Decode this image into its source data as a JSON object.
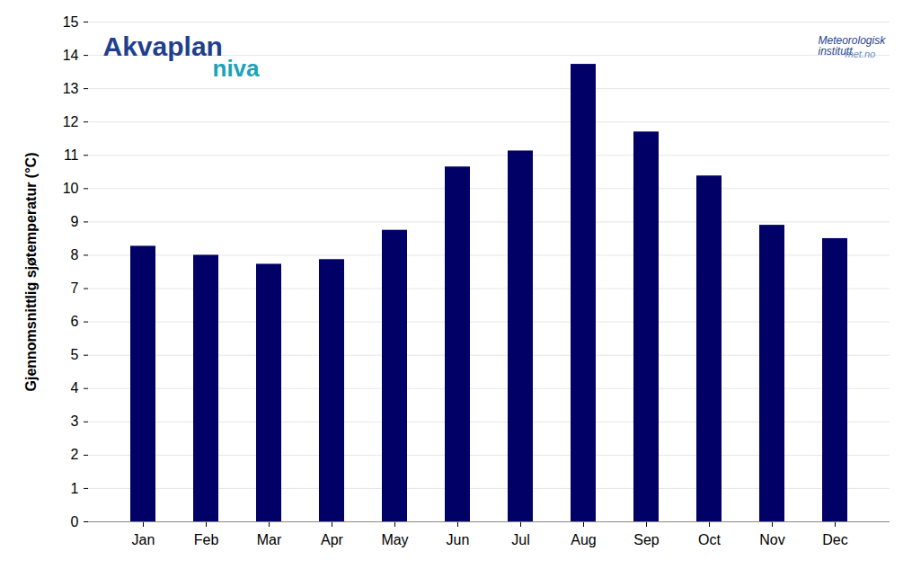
{
  "chart_data": {
    "type": "bar",
    "y_label": "Gjennomsnittlig sjøtemperatur (°C)",
    "categories": [
      "Jan",
      "Feb",
      "Mar",
      "Apr",
      "May",
      "Jun",
      "Jul",
      "Aug",
      "Sep",
      "Oct",
      "Nov",
      "Dec"
    ],
    "values": [
      8.27,
      8.0,
      7.73,
      7.87,
      8.75,
      10.65,
      11.13,
      13.73,
      11.7,
      10.38,
      8.9,
      8.5
    ],
    "color": "#000066",
    "ylim": [
      0,
      15
    ],
    "yticks": [
      0,
      1,
      2,
      3,
      4,
      5,
      6,
      7,
      8,
      9,
      10,
      11,
      12,
      13,
      14,
      15
    ],
    "grid": true,
    "annotations": [
      "Akvaplan",
      "niva",
      "Meteorologisk institutt",
      "met.no"
    ]
  }
}
